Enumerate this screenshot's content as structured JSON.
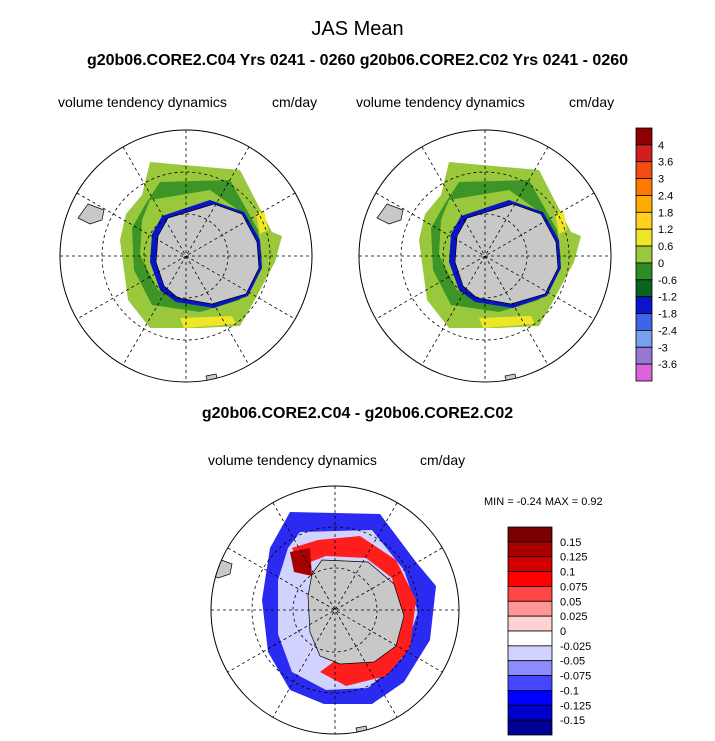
{
  "figure": {
    "title": "JAS Mean",
    "subtitle": "g20b06.CORE2.C04  Yrs 0241 - 0260 g20b06.CORE2.C02  Yrs 0241 - 0260",
    "diff_title": "g20b06.CORE2.C04 - g20b06.CORE2.C02",
    "minmax": "MIN =  -0.24 MAX =   0.92"
  },
  "chart_data": [
    {
      "type": "heatmap",
      "projection": "south-polar-stereographic",
      "title": "",
      "left_label": "volume tendency dynamics",
      "right_label": "cm/day",
      "colorbar": {
        "levels": [
          "4",
          "3.6",
          "3",
          "2.4",
          "1.8",
          "1.2",
          "0.6",
          "0",
          "-0.6",
          "-1.2",
          "-1.8",
          "-2.4",
          "-3",
          "-3.6"
        ],
        "colors": [
          "#8b0000",
          "#d21e1e",
          "#f44b12",
          "#ff7800",
          "#ffaa00",
          "#ffd21e",
          "#f0e628",
          "#9ac83c",
          "#2d8c23",
          "#0a641e",
          "#0a14c8",
          "#3c64e6",
          "#78a0f0",
          "#9678d2",
          "#dc64dc"
        ]
      }
    },
    {
      "type": "heatmap",
      "projection": "south-polar-stereographic",
      "title": "",
      "left_label": "volume tendency dynamics",
      "right_label": "cm/day"
    },
    {
      "type": "heatmap",
      "projection": "south-polar-stereographic",
      "title": "g20b06.CORE2.C04 - g20b06.CORE2.C02",
      "left_label": "volume tendency dynamics",
      "right_label": "cm/day",
      "min": -0.24,
      "max": 0.92,
      "colorbar": {
        "levels": [
          "0.15",
          "0.125",
          "0.1",
          "0.075",
          "0.05",
          "0.025",
          "0",
          "-0.025",
          "-0.05",
          "-0.075",
          "-0.1",
          "-0.125",
          "-0.15"
        ],
        "colors": [
          "#7a0000",
          "#a80000",
          "#d20000",
          "#ff0000",
          "#ff4646",
          "#ff9696",
          "#ffd2d2",
          "#ffffff",
          "#d2d2ff",
          "#8c8cff",
          "#4646ff",
          "#0000ff",
          "#0000c8",
          "#000096"
        ]
      }
    }
  ]
}
